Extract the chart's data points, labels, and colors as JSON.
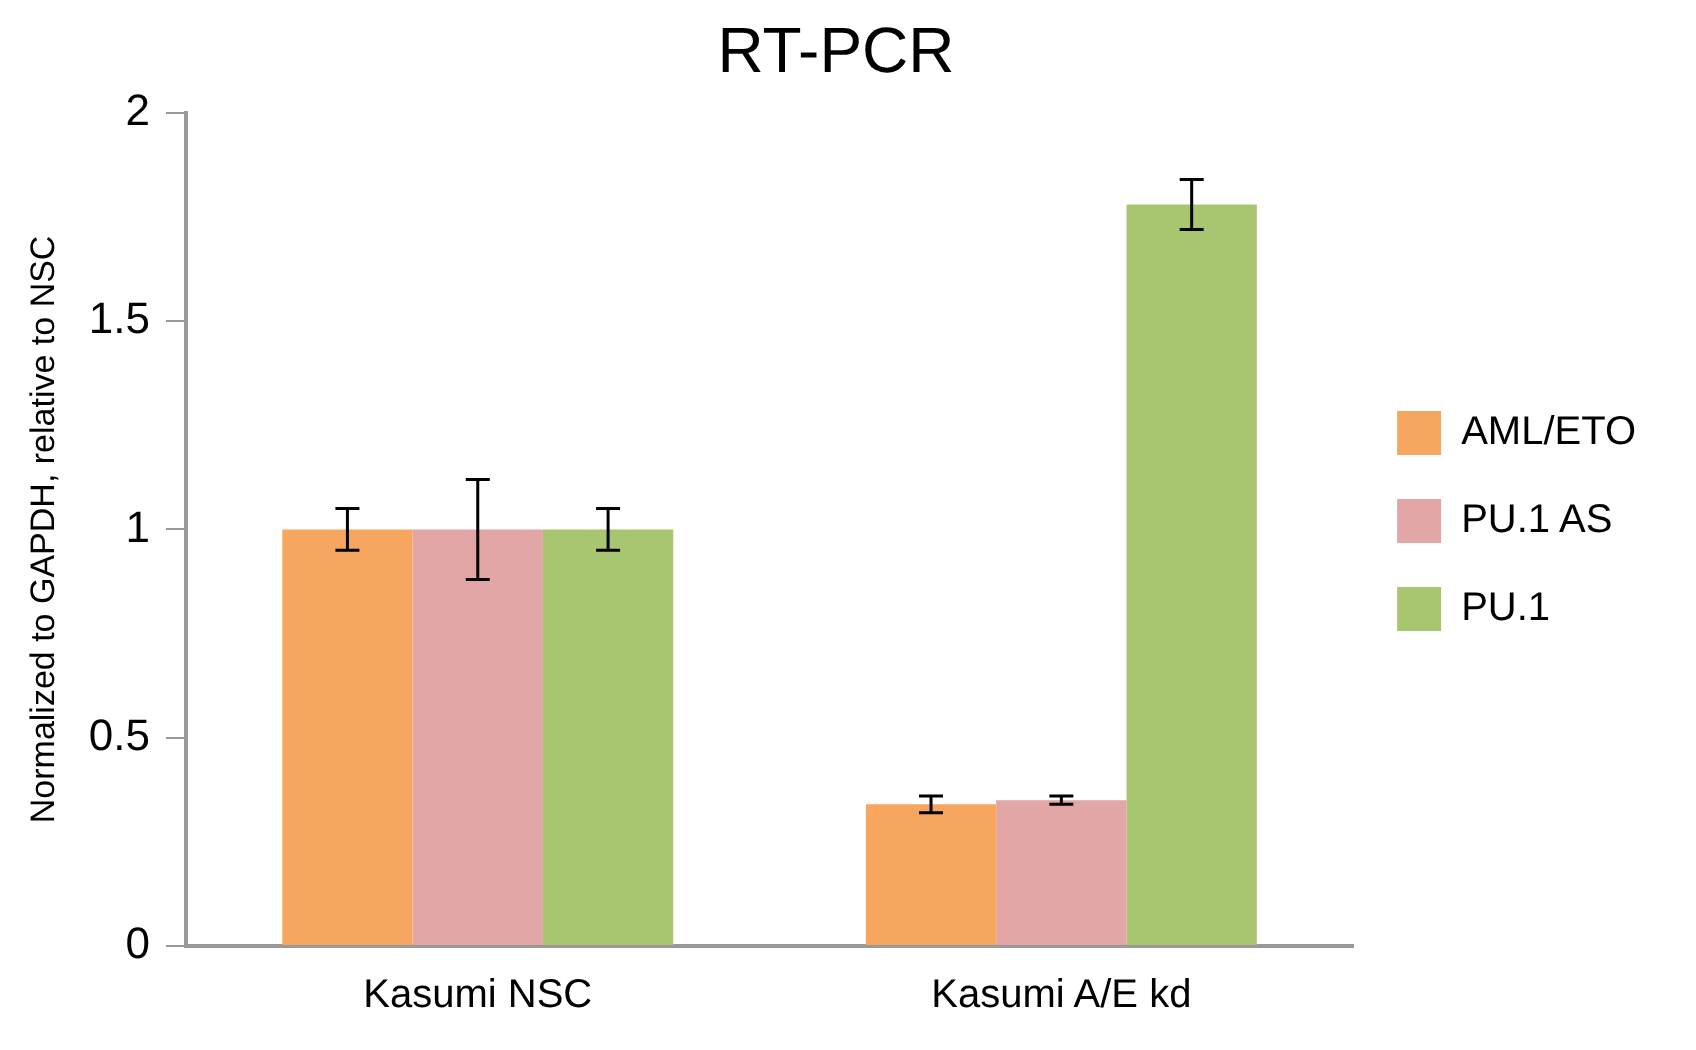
{
  "chart_data": {
    "type": "bar",
    "title": "RT-PCR",
    "ylabel": "Normalized to GAPDH, relative to NSC",
    "categories": [
      "Kasumi NSC",
      "Kasumi A/E kd"
    ],
    "series": [
      {
        "name": "AML/ETO",
        "color": "#f7a65f",
        "values": [
          1,
          0.34
        ],
        "errors": [
          0.05,
          0.02
        ]
      },
      {
        "name": "PU.1 AS",
        "color": "#e2a6a6",
        "values": [
          1,
          0.35
        ],
        "errors": [
          0.12,
          0.01
        ]
      },
      {
        "name": "PU.1",
        "color": "#a8c570",
        "values": [
          1,
          1.78
        ],
        "errors": [
          0.05,
          0.06
        ]
      }
    ],
    "ylim": [
      0,
      2
    ],
    "yticks": [
      0,
      0.5,
      1,
      1.5,
      2
    ],
    "grid": false,
    "legend": "right"
  }
}
